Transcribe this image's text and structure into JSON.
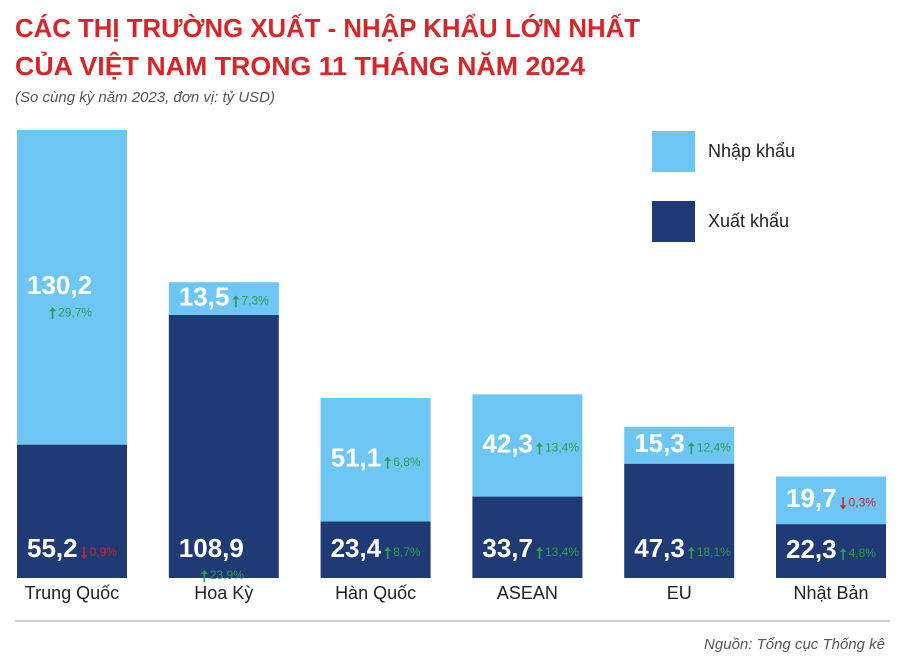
{
  "chart_data": {
    "type": "stacked-bar",
    "title_lines": [
      "CÁC THỊ TRƯỜNG XUẤT - NHẬP KHẨU LỚN NHẤT",
      "CỦA VIỆT NAM TRONG 11 THÁNG NĂM 2024"
    ],
    "subtitle": "(So cùng kỳ năm 2023, đơn vị: tỷ USD)",
    "source": "Nguồn: Tổng cục Thống kê",
    "categories": [
      "Trung Quốc",
      "Hoa Kỳ",
      "Hàn Quốc",
      "ASEAN",
      "EU",
      "Nhật Bản"
    ],
    "up_color": "#2e9e4f",
    "down_color": "#d0202a",
    "series": [
      {
        "name": "Xuất khẩu",
        "color": "#1f3a75",
        "values": [
          55.2,
          108.9,
          23.4,
          33.7,
          47.3,
          22.3
        ],
        "value_labels": [
          "55,2",
          "108,9",
          "23,4",
          "33,7",
          "47,3",
          "22,3"
        ],
        "change_labels": [
          "0,9%",
          "23,9%",
          "8,7%",
          "13,4%",
          "18,1%",
          "4,8%"
        ],
        "change_directions": [
          "down",
          "up",
          "up",
          "up",
          "up",
          "up"
        ]
      },
      {
        "name": "Nhập khẩu",
        "color": "#6ec6f5",
        "values": [
          130.2,
          13.5,
          51.1,
          42.3,
          15.3,
          19.7
        ],
        "value_labels": [
          "130,2",
          "13,5",
          "51,1",
          "42,3",
          "15,3",
          "19,7"
        ],
        "change_labels": [
          "29,7%",
          "7,3%",
          "6,8%",
          "13,4%",
          "12,4%",
          "0,3%"
        ],
        "change_directions": [
          "up",
          "up",
          "up",
          "up",
          "up",
          "down"
        ]
      }
    ]
  }
}
